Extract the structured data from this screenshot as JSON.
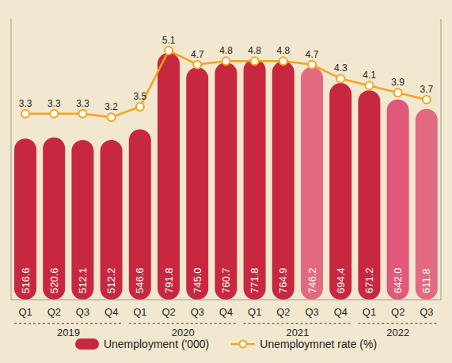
{
  "chart_data": {
    "type": "bar",
    "categories": [
      "Q1",
      "Q2",
      "Q3",
      "Q4",
      "Q1",
      "Q2",
      "Q3",
      "Q4",
      "Q1",
      "Q2",
      "Q3",
      "Q4",
      "Q1",
      "Q2",
      "Q3"
    ],
    "years": [
      "2019",
      "2019",
      "2019",
      "2019",
      "2020",
      "2020",
      "2020",
      "2020",
      "2021",
      "2021",
      "2021",
      "2021",
      "2022",
      "2022",
      "2022"
    ],
    "series": [
      {
        "name": "Unemployment ('000)",
        "type": "bar",
        "values": [
          516.6,
          520.6,
          512.1,
          512.2,
          546.6,
          791.8,
          745.0,
          760.7,
          771.8,
          764.9,
          746.2,
          694.4,
          671.2,
          642.0,
          611.8
        ],
        "value_labels": [
          "516.6",
          "520.6",
          "512.1",
          "512.2",
          "546.6",
          "791.8",
          "745.0",
          "760.7",
          "771.8",
          "764.9",
          "746.2",
          "694.4",
          "671.2",
          "642.0",
          "611.8"
        ],
        "colors": [
          "#c8283f",
          "#c8283f",
          "#c8283f",
          "#c8283f",
          "#c8283f",
          "#c8283f",
          "#c8283f",
          "#c8283f",
          "#c8283f",
          "#c8283f",
          "#e26a80",
          "#c8283f",
          "#c8283f",
          "#e0587a",
          "#e26a80"
        ]
      },
      {
        "name": "Unemploymnet rate (%)",
        "type": "line",
        "axis": "y2",
        "color": "#f5a31a",
        "marker": "circle",
        "values": [
          3.3,
          3.3,
          3.3,
          3.2,
          3.5,
          5.1,
          4.7,
          4.8,
          4.8,
          4.8,
          4.7,
          4.3,
          4.1,
          3.9,
          3.7
        ]
      }
    ],
    "ylim": [
      0,
      900
    ],
    "y2lim": [
      -2,
      6
    ],
    "tick_labels": "x",
    "data_labels": true,
    "legend": "bottom"
  }
}
